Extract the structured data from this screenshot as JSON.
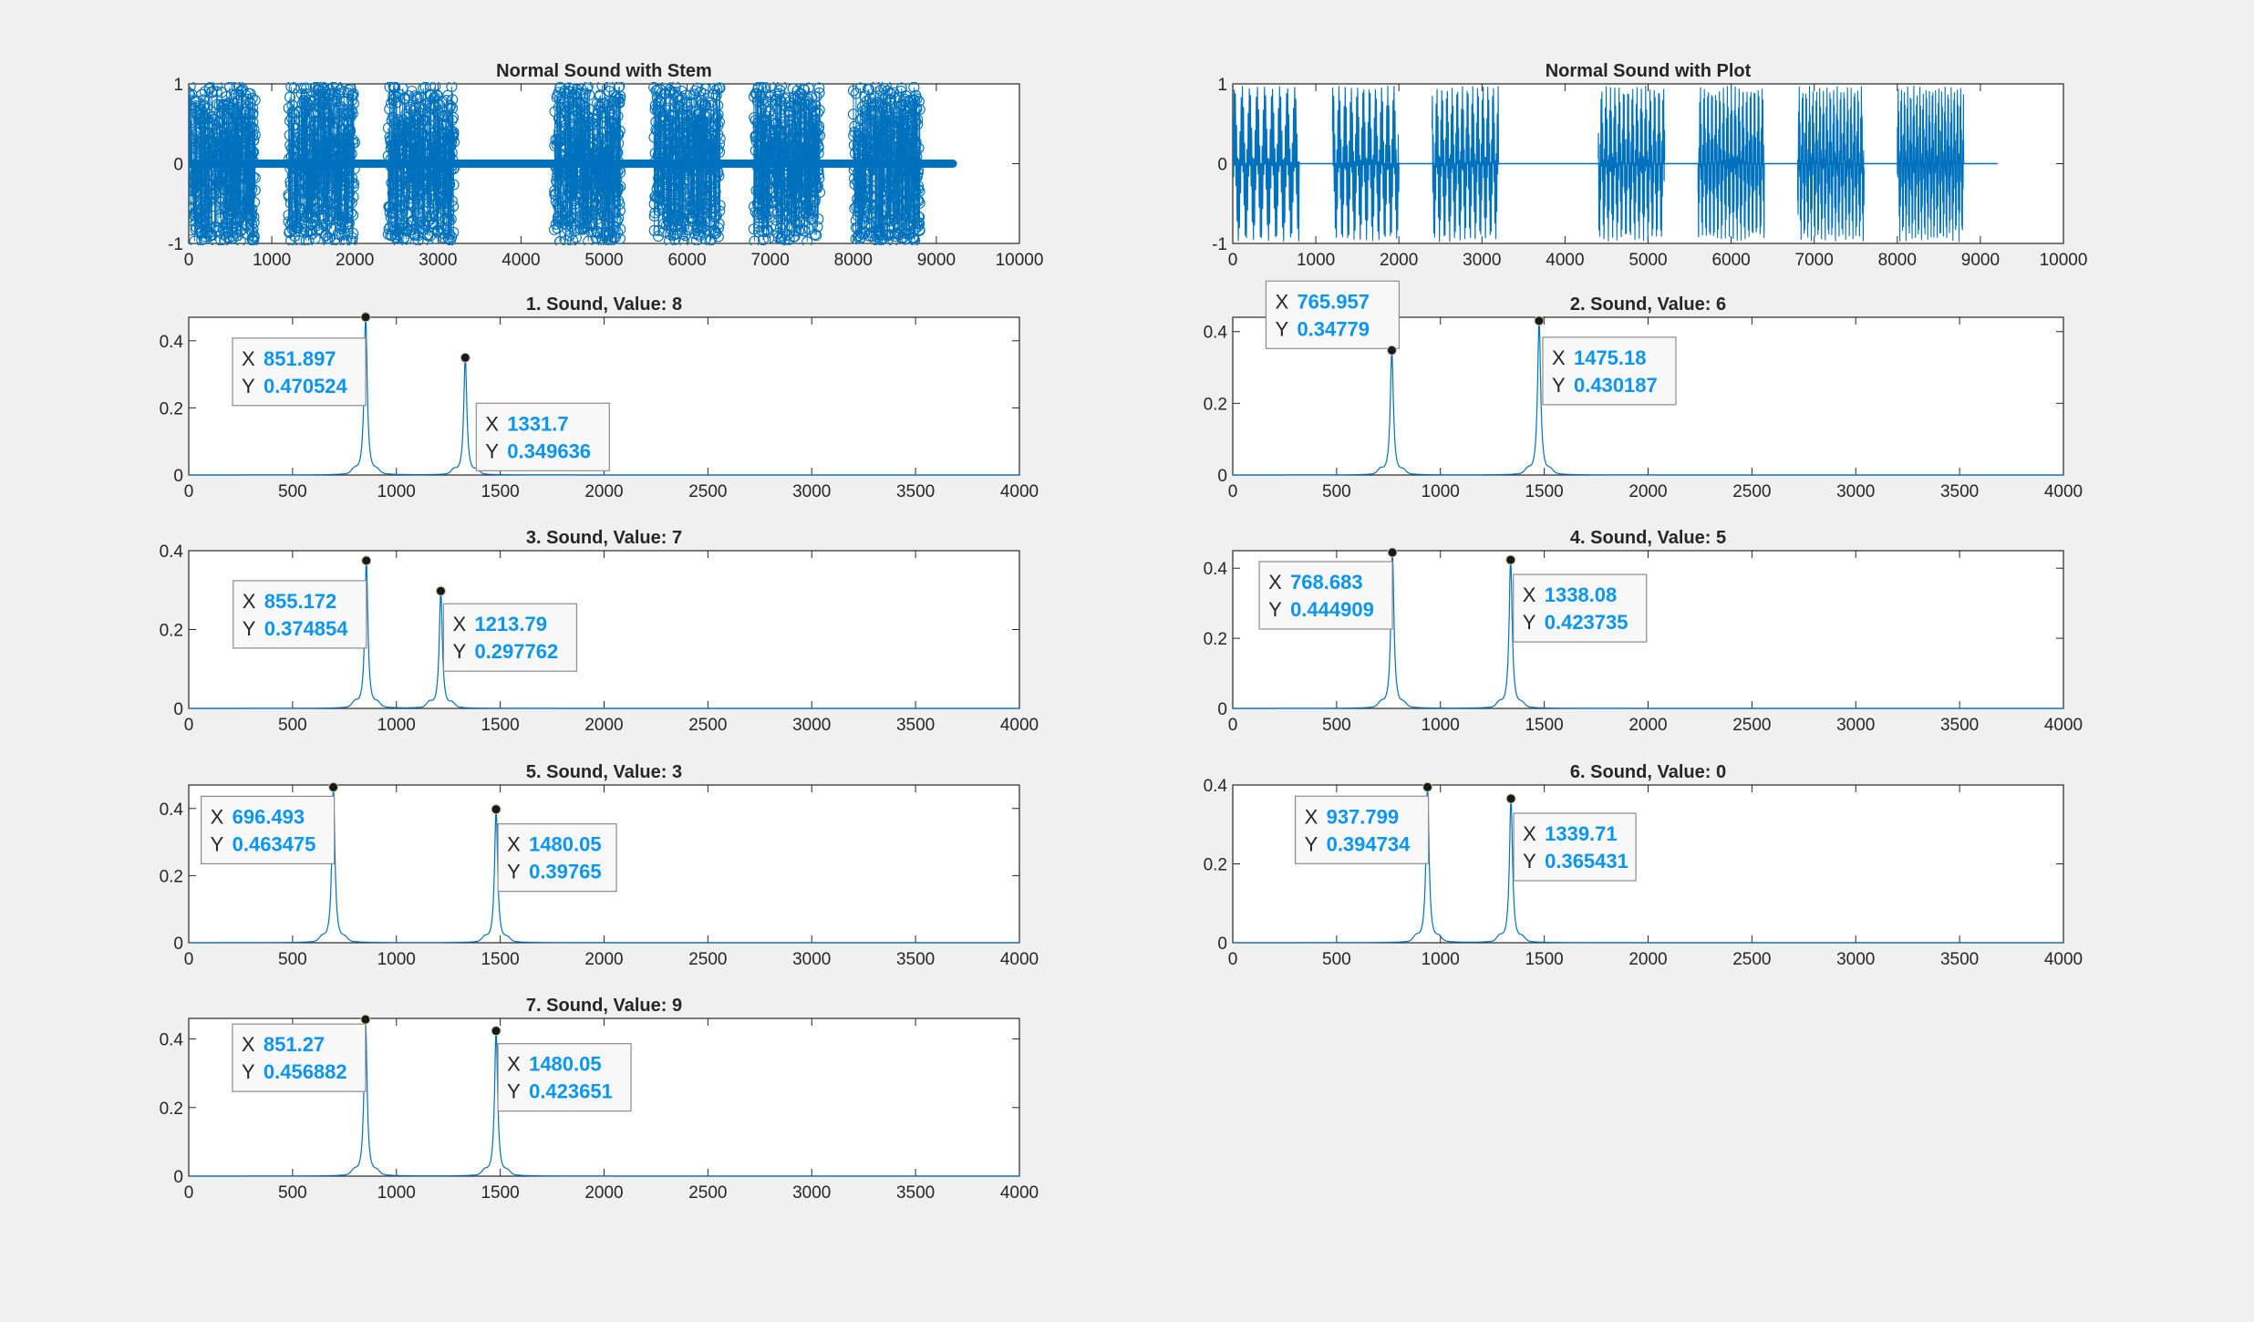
{
  "colors": {
    "line": "#0072BD",
    "axes": "#262626",
    "datatip_value": "#0a96f0",
    "marker": "#000000"
  },
  "chart_data": [
    {
      "id": "stem",
      "type": "stem",
      "title": "Normal Sound with Stem",
      "xlim": [
        0,
        10000
      ],
      "ylim": [
        -1,
        1
      ],
      "xticks": [
        "0",
        "1000",
        "2000",
        "3000",
        "4000",
        "5000",
        "6000",
        "7000",
        "8000",
        "9000",
        "10000"
      ],
      "yticks": [
        "-1",
        "0",
        "1"
      ],
      "segments": [
        [
          0,
          800
        ],
        [
          1200,
          2000
        ],
        [
          2400,
          3200
        ],
        [
          4400,
          5200
        ],
        [
          5600,
          6400
        ],
        [
          6800,
          7600
        ],
        [
          8000,
          8800
        ]
      ],
      "signal_end": 9200
    },
    {
      "id": "plot",
      "type": "line",
      "title": "Normal Sound with Plot",
      "xlim": [
        0,
        10000
      ],
      "ylim": [
        -1,
        1
      ],
      "xticks": [
        "0",
        "1000",
        "2000",
        "3000",
        "4000",
        "5000",
        "6000",
        "7000",
        "8000",
        "9000",
        "10000"
      ],
      "yticks": [
        "-1",
        "0",
        "1"
      ],
      "segments": [
        [
          0,
          800
        ],
        [
          1200,
          2000
        ],
        [
          2400,
          3200
        ],
        [
          4400,
          5200
        ],
        [
          5600,
          6400
        ],
        [
          6800,
          7600
        ],
        [
          8000,
          8800
        ]
      ],
      "signal_end": 9200
    },
    {
      "id": "s1",
      "type": "line",
      "title": "1. Sound, Value: 8",
      "xlim": [
        0,
        4000
      ],
      "ylim": [
        0,
        0.47
      ],
      "xticks": [
        "0",
        "500",
        "1000",
        "1500",
        "2000",
        "2500",
        "3000",
        "3500",
        "4000"
      ],
      "yticks": [
        "0",
        "0.2",
        "0.4"
      ],
      "peaks": [
        {
          "x": 851.897,
          "y": 0.470524,
          "xlabel": "851.897",
          "ylabel": "0.470524"
        },
        {
          "x": 1331.7,
          "y": 0.349636,
          "xlabel": "1331.7",
          "ylabel": "0.349636"
        }
      ]
    },
    {
      "id": "s2",
      "type": "line",
      "title": "2. Sound, Value: 6",
      "xlim": [
        0,
        4000
      ],
      "ylim": [
        0,
        0.44
      ],
      "xticks": [
        "0",
        "500",
        "1000",
        "1500",
        "2000",
        "2500",
        "3000",
        "3500",
        "4000"
      ],
      "yticks": [
        "0",
        "0.2",
        "0.4"
      ],
      "peaks": [
        {
          "x": 765.957,
          "y": 0.34779,
          "xlabel": "765.957",
          "ylabel": "0.34779"
        },
        {
          "x": 1475.18,
          "y": 0.430187,
          "xlabel": "1475.18",
          "ylabel": "0.430187"
        }
      ]
    },
    {
      "id": "s3",
      "type": "line",
      "title": "3. Sound, Value: 7",
      "xlim": [
        0,
        4000
      ],
      "ylim": [
        0,
        0.4
      ],
      "xticks": [
        "0",
        "500",
        "1000",
        "1500",
        "2000",
        "2500",
        "3000",
        "3500",
        "4000"
      ],
      "yticks": [
        "0",
        "0.2",
        "0.4"
      ],
      "peaks": [
        {
          "x": 855.172,
          "y": 0.374854,
          "xlabel": "855.172",
          "ylabel": "0.374854"
        },
        {
          "x": 1213.79,
          "y": 0.297762,
          "xlabel": "1213.79",
          "ylabel": "0.297762"
        }
      ]
    },
    {
      "id": "s4",
      "type": "line",
      "title": "4. Sound, Value: 5",
      "xlim": [
        0,
        4000
      ],
      "ylim": [
        0,
        0.45
      ],
      "xticks": [
        "0",
        "500",
        "1000",
        "1500",
        "2000",
        "2500",
        "3000",
        "3500",
        "4000"
      ],
      "yticks": [
        "0",
        "0.2",
        "0.4"
      ],
      "peaks": [
        {
          "x": 768.683,
          "y": 0.444909,
          "xlabel": "768.683",
          "ylabel": "0.444909"
        },
        {
          "x": 1338.08,
          "y": 0.423735,
          "xlabel": "1338.08",
          "ylabel": "0.423735"
        }
      ]
    },
    {
      "id": "s5",
      "type": "line",
      "title": "5. Sound, Value: 3",
      "xlim": [
        0,
        4000
      ],
      "ylim": [
        0,
        0.47
      ],
      "xticks": [
        "0",
        "500",
        "1000",
        "1500",
        "2000",
        "2500",
        "3000",
        "3500",
        "4000"
      ],
      "yticks": [
        "0",
        "0.2",
        "0.4"
      ],
      "peaks": [
        {
          "x": 696.493,
          "y": 0.463475,
          "xlabel": "696.493",
          "ylabel": "0.463475"
        },
        {
          "x": 1480.05,
          "y": 0.39765,
          "xlabel": "1480.05",
          "ylabel": "0.39765"
        }
      ]
    },
    {
      "id": "s6",
      "type": "line",
      "title": "6. Sound, Value: 0",
      "xlim": [
        0,
        4000
      ],
      "ylim": [
        0,
        0.4
      ],
      "xticks": [
        "0",
        "500",
        "1000",
        "1500",
        "2000",
        "2500",
        "3000",
        "3500",
        "4000"
      ],
      "yticks": [
        "0",
        "0.2",
        "0.4"
      ],
      "peaks": [
        {
          "x": 937.799,
          "y": 0.394734,
          "xlabel": "937.799",
          "ylabel": "0.394734"
        },
        {
          "x": 1339.71,
          "y": 0.365431,
          "xlabel": "1339.71",
          "ylabel": "0.365431"
        }
      ]
    },
    {
      "id": "s7",
      "type": "line",
      "title": "7. Sound, Value: 9",
      "xlim": [
        0,
        4000
      ],
      "ylim": [
        0,
        0.46
      ],
      "xticks": [
        "0",
        "500",
        "1000",
        "1500",
        "2000",
        "2500",
        "3000",
        "3500",
        "4000"
      ],
      "yticks": [
        "0",
        "0.2",
        "0.4"
      ],
      "peaks": [
        {
          "x": 851.27,
          "y": 0.456882,
          "xlabel": "851.27",
          "ylabel": "0.456882"
        },
        {
          "x": 1480.05,
          "y": 0.423651,
          "xlabel": "1480.05",
          "ylabel": "0.423651"
        }
      ]
    }
  ]
}
